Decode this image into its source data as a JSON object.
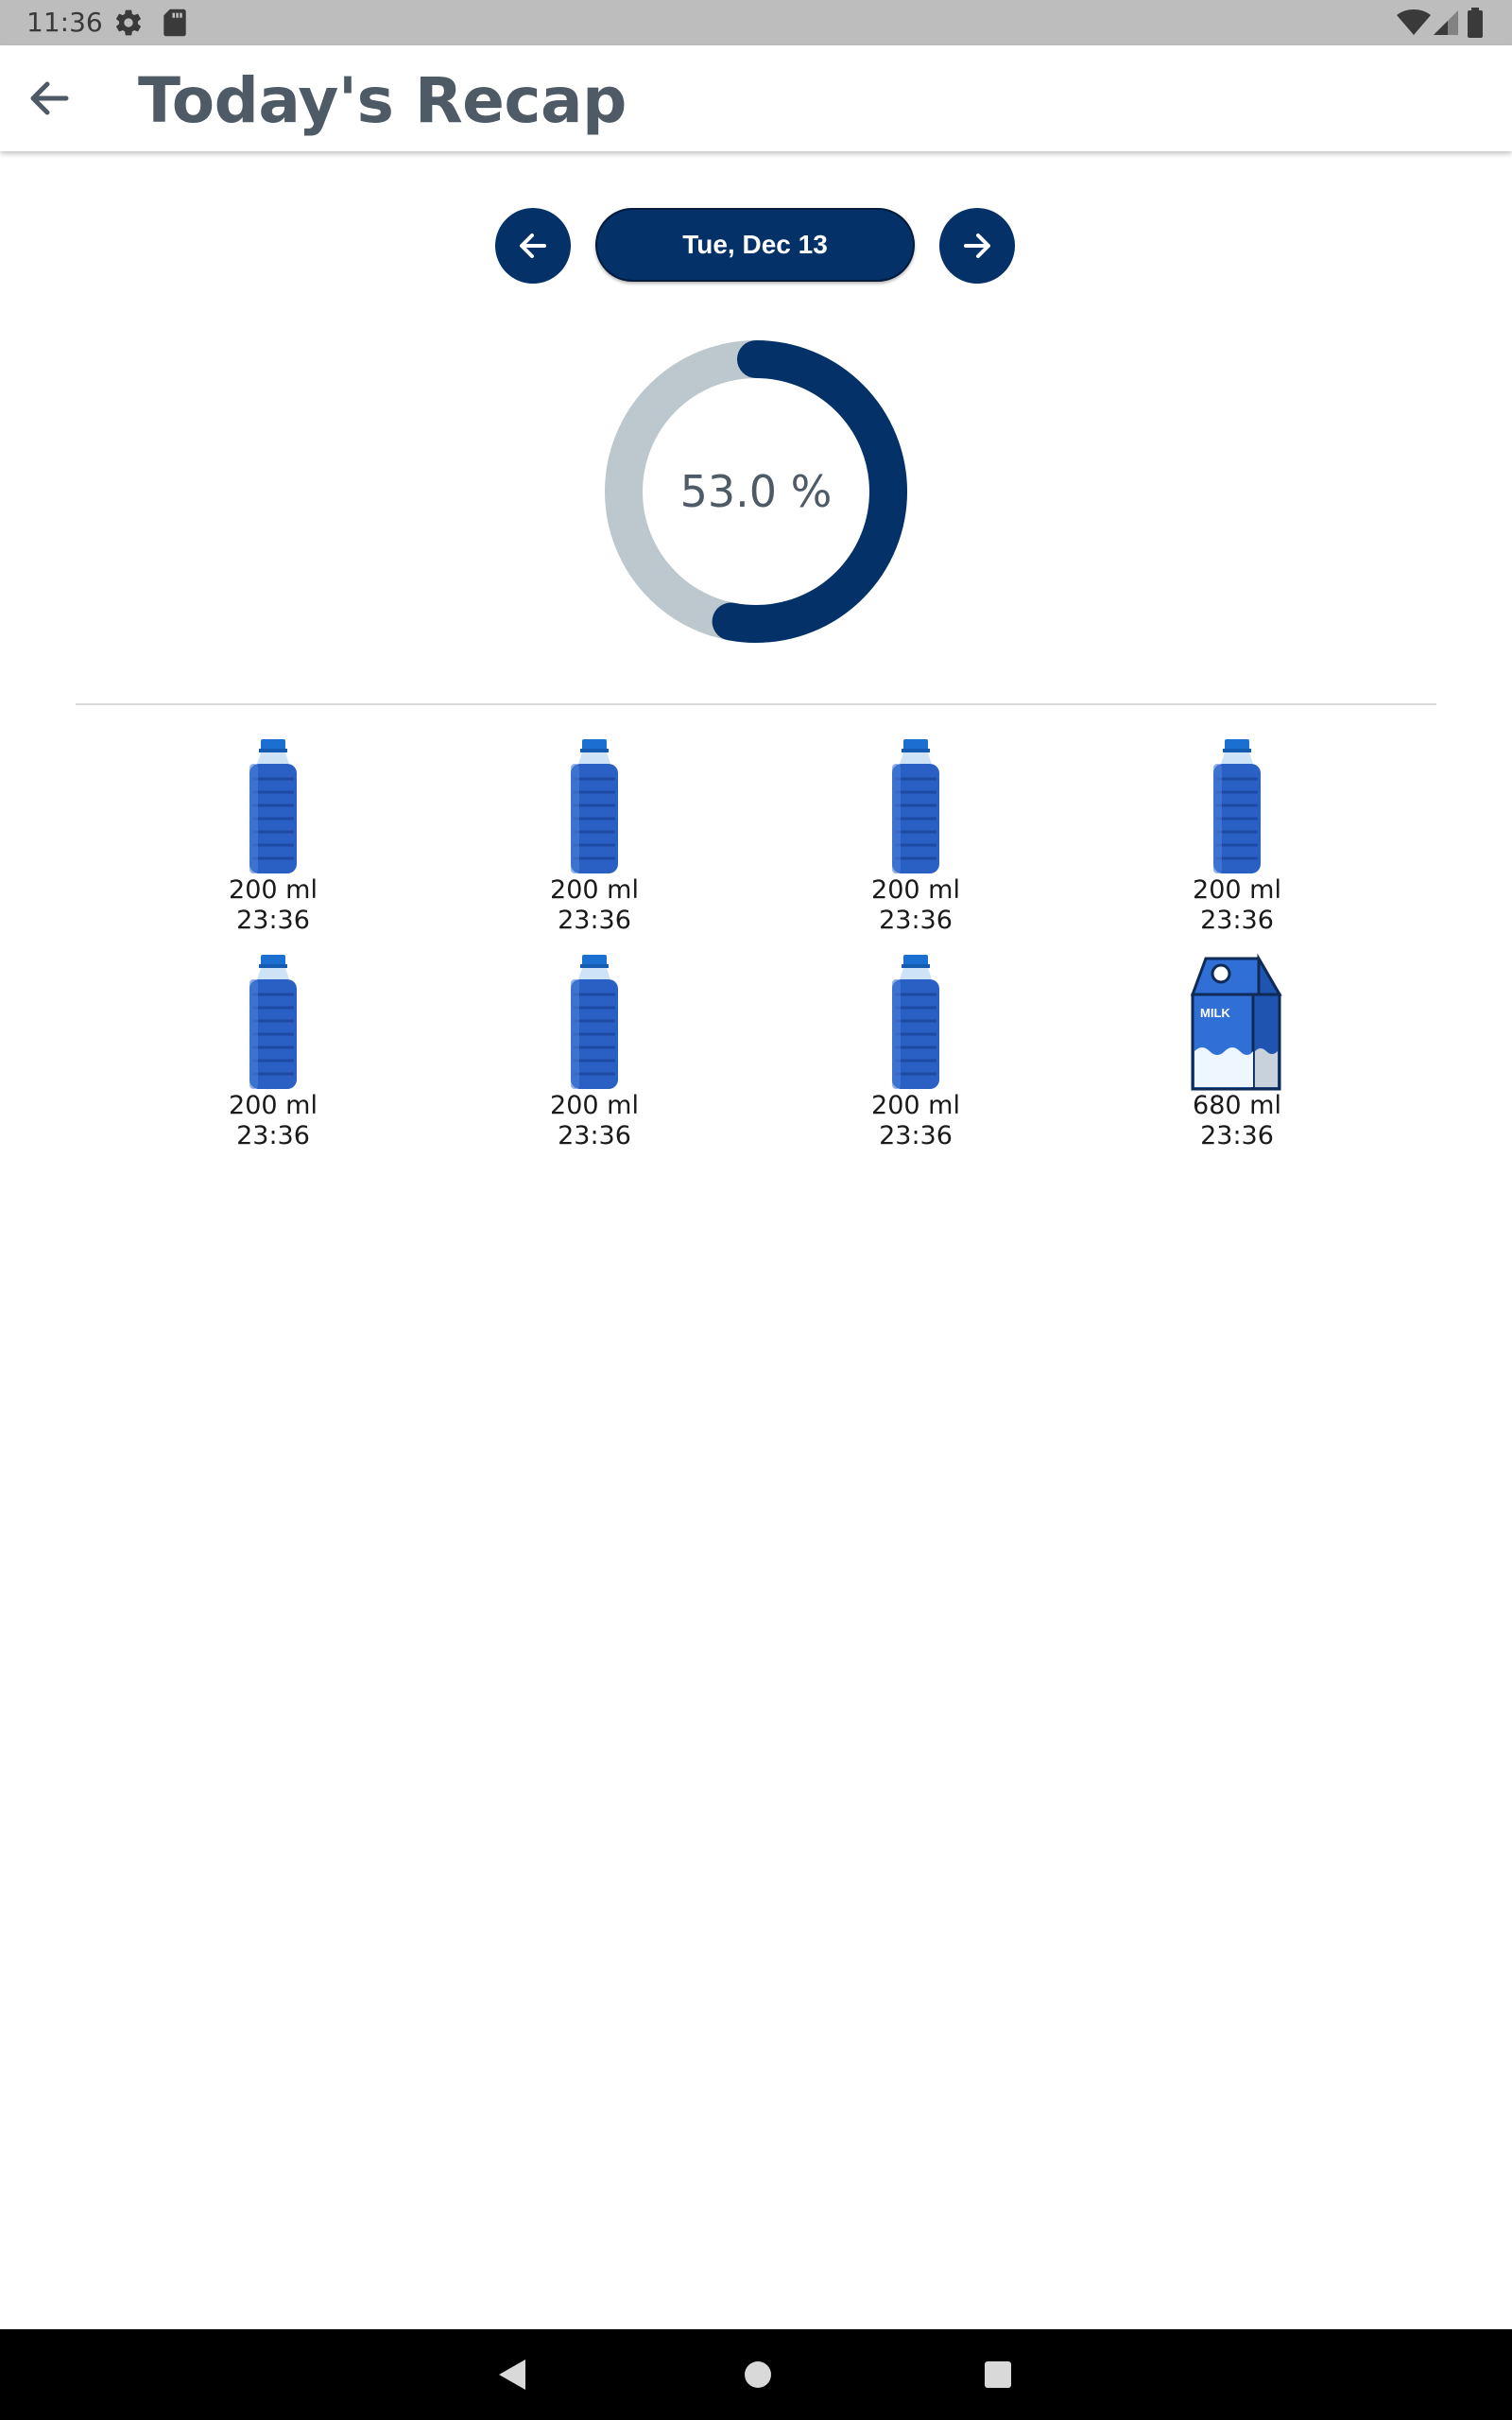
{
  "status_bar": {
    "time": "11:36",
    "icons": [
      "gear-icon",
      "sd-card-icon",
      "wifi-icon",
      "signal-icon",
      "battery-icon"
    ]
  },
  "app_bar": {
    "title": "Today's Recap",
    "back_icon": "arrow-left-icon"
  },
  "date_nav": {
    "date_label": "Tue, Dec 13",
    "prev_icon": "arrow-left-icon",
    "next_icon": "arrow-right-icon"
  },
  "progress": {
    "label": "53.0 %",
    "value": 0.53,
    "track_color": "#bcc8cd",
    "fill_color": "#033168"
  },
  "intakes": [
    {
      "icon": "water-bottle-icon",
      "amount": "200 ml",
      "time": "23:36"
    },
    {
      "icon": "water-bottle-icon",
      "amount": "200 ml",
      "time": "23:36"
    },
    {
      "icon": "water-bottle-icon",
      "amount": "200 ml",
      "time": "23:36"
    },
    {
      "icon": "water-bottle-icon",
      "amount": "200 ml",
      "time": "23:36"
    },
    {
      "icon": "water-bottle-icon",
      "amount": "200 ml",
      "time": "23:36"
    },
    {
      "icon": "water-bottle-icon",
      "amount": "200 ml",
      "time": "23:36"
    },
    {
      "icon": "water-bottle-icon",
      "amount": "200 ml",
      "time": "23:36"
    },
    {
      "icon": "milk-carton-icon",
      "amount": "680 ml",
      "time": "23:36",
      "carton_label": "MILK"
    }
  ],
  "colors": {
    "primary": "#033168",
    "title_text": "#4e5a66",
    "bottle_blue": "#2a5fc4",
    "cap_blue": "#1a6fd1"
  },
  "nav_bar": {
    "icons": [
      "back-triangle-icon",
      "home-circle-icon",
      "recents-square-icon"
    ]
  }
}
